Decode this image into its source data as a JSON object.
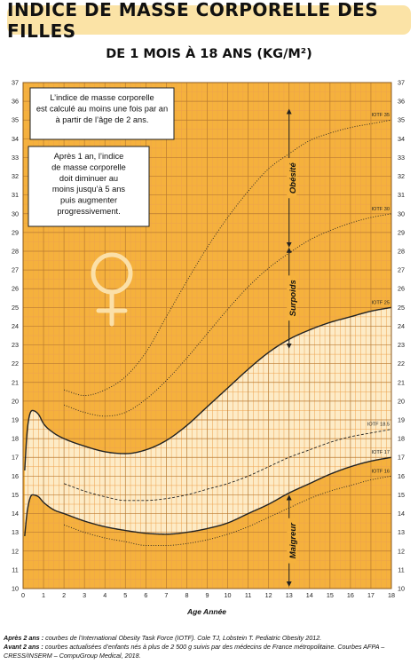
{
  "header": {
    "title": "INDICE DE MASSE CORPORELLE DES FILLES",
    "subtitle": "DE 1 MOIS À 18 ANS (KG/M²)"
  },
  "boxes": {
    "box1": [
      "L’indice de masse corporelle",
      "est calculé au moins une fois par an",
      "à partir de l’âge de 2 ans."
    ],
    "box2": [
      "Après 1 an, l’indice",
      "de masse corporelle",
      "doit diminuer au",
      "moins jusqu’à 5 ans",
      "puis augmenter",
      "progressivement."
    ]
  },
  "zones": [
    "Obésité",
    "Surpoids",
    "Maigreur"
  ],
  "footnote": {
    "line1_bold": "Après 2 ans :",
    "line1": " courbes de l’International Obesity Task Force (IOTF). Cole TJ, Lobstein T. Pediatric Obesity 2012.",
    "line2_bold": "Avant 2 ans :",
    "line2": " courbes actualisées d’enfants nés à plus de 2 500 g suivis par des médecins de France métropolitaine. Courbes AFPA – CRESS/INSERM – CompuGroup Medical, 2018."
  },
  "colors": {
    "background": "#f5b13d",
    "band": "#fdebc6",
    "grid_minor": "#eda24e",
    "grid_major": "#b97a33",
    "curve": "#222222",
    "venus_symbol": "#fbe0a8"
  },
  "icons": [
    "venus-icon"
  ],
  "chart_data": {
    "type": "line",
    "title": "",
    "xlabel": "Age   Année",
    "ylabel": "",
    "xlim": [
      0,
      18
    ],
    "ylim": [
      10,
      37
    ],
    "xticks": [
      0,
      1,
      2,
      3,
      4,
      5,
      6,
      7,
      8,
      9,
      10,
      11,
      12,
      13,
      14,
      15,
      16,
      17,
      18
    ],
    "yticks": [
      10,
      11,
      12,
      13,
      14,
      15,
      16,
      17,
      18,
      19,
      20,
      21,
      22,
      23,
      24,
      25,
      26,
      27,
      28,
      29,
      30,
      31,
      32,
      33,
      34,
      35,
      36,
      37
    ],
    "grid": true,
    "series": [
      {
        "name": "IOTF 35",
        "style": "dotted",
        "points": [
          [
            2,
            20.6
          ],
          [
            3,
            20.3
          ],
          [
            4,
            20.6
          ],
          [
            5,
            21.3
          ],
          [
            6,
            22.6
          ],
          [
            7,
            24.5
          ],
          [
            8,
            26.4
          ],
          [
            9,
            28.2
          ],
          [
            10,
            29.8
          ],
          [
            11,
            31.2
          ],
          [
            12,
            32.4
          ],
          [
            13,
            33.2
          ],
          [
            14,
            33.9
          ],
          [
            15,
            34.3
          ],
          [
            16,
            34.6
          ],
          [
            17,
            34.8
          ],
          [
            18,
            35.0
          ]
        ]
      },
      {
        "name": "IOTF 30",
        "style": "dotted",
        "points": [
          [
            2,
            19.8
          ],
          [
            3,
            19.4
          ],
          [
            4,
            19.2
          ],
          [
            5,
            19.4
          ],
          [
            6,
            20.1
          ],
          [
            7,
            21.1
          ],
          [
            8,
            22.3
          ],
          [
            9,
            23.6
          ],
          [
            10,
            24.9
          ],
          [
            11,
            26.1
          ],
          [
            12,
            27.1
          ],
          [
            13,
            27.9
          ],
          [
            14,
            28.6
          ],
          [
            15,
            29.1
          ],
          [
            16,
            29.5
          ],
          [
            17,
            29.8
          ],
          [
            18,
            30.0
          ]
        ]
      },
      {
        "name": "IOTF 25",
        "style": "solid",
        "points": [
          [
            0.08,
            16.3
          ],
          [
            0.2,
            18.4
          ],
          [
            0.45,
            19.5
          ],
          [
            0.75,
            19.3
          ],
          [
            1,
            18.8
          ],
          [
            1.5,
            18.3
          ],
          [
            2,
            18.0
          ],
          [
            3,
            17.6
          ],
          [
            4,
            17.3
          ],
          [
            5,
            17.2
          ],
          [
            6,
            17.4
          ],
          [
            7,
            17.9
          ],
          [
            8,
            18.7
          ],
          [
            9,
            19.7
          ],
          [
            10,
            20.7
          ],
          [
            11,
            21.7
          ],
          [
            12,
            22.6
          ],
          [
            13,
            23.3
          ],
          [
            14,
            23.8
          ],
          [
            15,
            24.2
          ],
          [
            16,
            24.5
          ],
          [
            17,
            24.8
          ],
          [
            18,
            25.0
          ]
        ]
      },
      {
        "name": "IOTF 18.5",
        "style": "dashed",
        "points": [
          [
            2,
            15.6
          ],
          [
            3,
            15.2
          ],
          [
            4,
            14.9
          ],
          [
            5,
            14.7
          ],
          [
            6,
            14.7
          ],
          [
            7,
            14.8
          ],
          [
            8,
            15.0
          ],
          [
            9,
            15.3
          ],
          [
            10,
            15.6
          ],
          [
            11,
            16.0
          ],
          [
            12,
            16.5
          ],
          [
            13,
            17.0
          ],
          [
            14,
            17.4
          ],
          [
            15,
            17.8
          ],
          [
            16,
            18.1
          ],
          [
            17,
            18.3
          ],
          [
            18,
            18.5
          ]
        ]
      },
      {
        "name": "IOTF 17",
        "style": "solid",
        "points": [
          [
            0.08,
            12.8
          ],
          [
            0.2,
            14.1
          ],
          [
            0.45,
            15.0
          ],
          [
            0.75,
            14.9
          ],
          [
            1,
            14.6
          ],
          [
            1.5,
            14.2
          ],
          [
            2,
            14.0
          ],
          [
            3,
            13.6
          ],
          [
            4,
            13.3
          ],
          [
            5,
            13.1
          ],
          [
            6,
            12.95
          ],
          [
            7,
            12.9
          ],
          [
            8,
            13.0
          ],
          [
            9,
            13.2
          ],
          [
            10,
            13.5
          ],
          [
            11,
            14.0
          ],
          [
            12,
            14.5
          ],
          [
            13,
            15.1
          ],
          [
            14,
            15.6
          ],
          [
            15,
            16.1
          ],
          [
            16,
            16.5
          ],
          [
            17,
            16.8
          ],
          [
            18,
            17.0
          ]
        ]
      },
      {
        "name": "IOTF 16",
        "style": "dotted",
        "points": [
          [
            2,
            13.4
          ],
          [
            3,
            13.0
          ],
          [
            4,
            12.7
          ],
          [
            5,
            12.5
          ],
          [
            6,
            12.3
          ],
          [
            7,
            12.3
          ],
          [
            8,
            12.4
          ],
          [
            9,
            12.6
          ],
          [
            10,
            12.9
          ],
          [
            11,
            13.3
          ],
          [
            12,
            13.8
          ],
          [
            13,
            14.3
          ],
          [
            14,
            14.8
          ],
          [
            15,
            15.2
          ],
          [
            16,
            15.5
          ],
          [
            17,
            15.8
          ],
          [
            18,
            16.0
          ]
        ]
      }
    ],
    "bands": [
      {
        "upper": "IOTF 25",
        "lower": "IOTF 18.5",
        "from": 2,
        "to": 18
      },
      {
        "upper": "IOTF 18.5",
        "lower": "IOTF 17",
        "from": 2,
        "to": 18
      },
      {
        "upper": "IOTF 25",
        "lower": "IOTF 17",
        "from": 0.08,
        "to": 2
      }
    ],
    "zone_arrows": [
      {
        "label": "Obésité",
        "x": 13,
        "y_from": 28.2,
        "y_to": 35.6
      },
      {
        "label": "Surpoids",
        "x": 13,
        "y_from": 22.8,
        "y_to": 28.2
      },
      {
        "label": "Maigreur",
        "x": 13,
        "y_from": 10.1,
        "y_to": 15.0
      }
    ]
  }
}
